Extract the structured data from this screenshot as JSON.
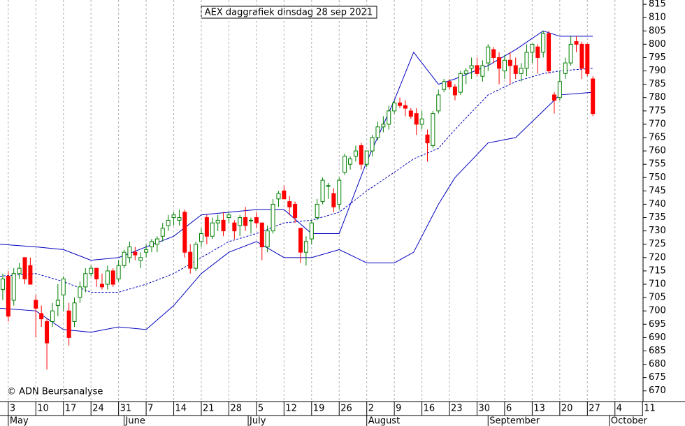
{
  "chart_data": {
    "type": "candlestick",
    "title": "AEX daggrafiek dinsdag 28 sep 2021",
    "source": "© ADN Beursanalyse",
    "xlim": [
      -1.5,
      115.1
    ],
    "ylim": [
      666,
      816.6
    ],
    "yticks": [
      670,
      675,
      680,
      685,
      690,
      695,
      700,
      705,
      710,
      715,
      720,
      725,
      730,
      735,
      740,
      745,
      750,
      755,
      760,
      765,
      770,
      775,
      780,
      785,
      790,
      795,
      800,
      805,
      810,
      815
    ],
    "xticks": [
      {
        "value": 0,
        "label": "3"
      },
      {
        "value": 5,
        "label": "10"
      },
      {
        "value": 10,
        "label": "17"
      },
      {
        "value": 15,
        "label": "24"
      },
      {
        "value": 20,
        "label": "31"
      },
      {
        "value": 25,
        "label": "7"
      },
      {
        "value": 30,
        "label": "14"
      },
      {
        "value": 35,
        "label": "21"
      },
      {
        "value": 40,
        "label": "28"
      },
      {
        "value": 45,
        "label": "5"
      },
      {
        "value": 50,
        "label": "12"
      },
      {
        "value": 55,
        "label": "19"
      },
      {
        "value": 60,
        "label": "26"
      },
      {
        "value": 65,
        "label": "2"
      },
      {
        "value": 70,
        "label": "9"
      },
      {
        "value": 75,
        "label": "16"
      },
      {
        "value": 80,
        "label": "23"
      },
      {
        "value": 85,
        "label": "30"
      },
      {
        "value": 90,
        "label": "6"
      },
      {
        "value": 95,
        "label": "13"
      },
      {
        "value": 100,
        "label": "20"
      },
      {
        "value": 105,
        "label": "27"
      },
      {
        "value": 110,
        "label": "4"
      },
      {
        "value": 115,
        "label": "11"
      }
    ],
    "month_ticks": [
      {
        "value": 0,
        "label": "May"
      },
      {
        "value": 21,
        "label": "June"
      },
      {
        "value": 43.5,
        "label": "July"
      },
      {
        "value": 65,
        "label": "August"
      },
      {
        "value": 87,
        "label": "September"
      },
      {
        "value": 109,
        "label": "October"
      }
    ],
    "grid": true,
    "up_color": "#008000",
    "down_color": "#ff0000",
    "x": [
      -1,
      0,
      1,
      2,
      3,
      4,
      5,
      6,
      7,
      8,
      9,
      10,
      11,
      12,
      13,
      14,
      15,
      16,
      17,
      18,
      19,
      20,
      21,
      22,
      23,
      24,
      25,
      26,
      27,
      28,
      29,
      30,
      31,
      32,
      33,
      34,
      35,
      36,
      37,
      38,
      39,
      40,
      41,
      42,
      43,
      44,
      45,
      46,
      47,
      48,
      49,
      50,
      51,
      52,
      53,
      54,
      55,
      56,
      57,
      58,
      59,
      60,
      61,
      62,
      63,
      64,
      65,
      66,
      67,
      68,
      69,
      70,
      71,
      72,
      73,
      74,
      75,
      76,
      77,
      78,
      79,
      80,
      81,
      82,
      83,
      84,
      85,
      86,
      87,
      88,
      89,
      90,
      91,
      92,
      93,
      94,
      95,
      96,
      97,
      98,
      99,
      100,
      101,
      102,
      103,
      104,
      105,
      106
    ],
    "ohlc": [
      [
        708,
        714,
        704,
        712
      ],
      [
        713,
        715,
        696,
        698
      ],
      [
        704,
        716,
        702,
        714
      ],
      [
        714,
        718,
        712,
        716
      ],
      [
        720,
        720,
        710,
        712
      ],
      [
        717,
        720,
        710,
        710
      ],
      [
        704,
        706,
        690,
        701
      ],
      [
        699,
        702,
        694,
        697
      ],
      [
        696,
        697,
        678,
        688
      ],
      [
        696,
        703,
        694,
        700
      ],
      [
        702,
        710,
        698,
        704
      ],
      [
        706,
        713,
        700,
        712
      ],
      [
        700,
        703,
        687,
        690
      ],
      [
        696,
        705,
        694,
        703
      ],
      [
        705,
        711,
        703,
        709
      ],
      [
        709,
        716,
        707,
        714
      ],
      [
        714,
        717,
        713,
        716
      ],
      [
        716,
        716,
        709,
        712
      ],
      [
        710,
        714,
        708,
        709
      ],
      [
        710,
        717,
        708,
        715
      ],
      [
        715,
        716,
        709,
        710
      ],
      [
        712,
        719,
        711,
        717
      ],
      [
        717,
        723,
        716,
        722
      ],
      [
        720,
        726,
        718,
        724
      ],
      [
        722,
        724,
        719,
        721
      ],
      [
        719,
        722,
        716,
        720
      ],
      [
        722,
        725,
        720,
        723
      ],
      [
        724,
        727,
        722,
        726
      ],
      [
        725,
        728,
        722,
        727
      ],
      [
        728,
        733,
        726,
        731
      ],
      [
        732,
        736,
        730,
        734
      ],
      [
        735,
        737,
        732,
        736
      ],
      [
        734,
        738,
        732,
        735
      ],
      [
        737,
        738,
        720,
        722
      ],
      [
        722,
        725,
        714,
        716
      ],
      [
        716,
        726,
        715,
        725
      ],
      [
        726,
        731,
        724,
        729
      ],
      [
        735,
        736,
        725,
        728
      ],
      [
        728,
        735,
        727,
        733
      ],
      [
        733,
        736,
        730,
        734
      ],
      [
        734,
        737,
        728,
        730
      ],
      [
        735,
        737,
        733,
        736
      ],
      [
        733,
        734,
        727,
        730
      ],
      [
        732,
        736,
        728,
        735
      ],
      [
        735,
        739,
        730,
        732
      ],
      [
        734,
        735,
        729,
        734
      ],
      [
        735,
        737,
        731,
        733
      ],
      [
        733,
        733,
        719,
        724
      ],
      [
        724,
        732,
        722,
        730
      ],
      [
        730,
        742,
        729,
        740
      ],
      [
        742,
        745,
        739,
        744
      ],
      [
        745,
        747,
        742,
        742
      ],
      [
        741,
        743,
        736,
        739
      ],
      [
        740,
        741,
        733,
        735
      ],
      [
        731,
        731,
        718,
        722
      ],
      [
        722,
        728,
        717,
        726
      ],
      [
        727,
        734,
        725,
        733
      ],
      [
        735,
        742,
        734,
        740
      ],
      [
        741,
        750,
        740,
        749
      ],
      [
        747,
        748,
        742,
        747
      ],
      [
        744,
        746,
        737,
        739
      ],
      [
        740,
        750,
        738,
        749
      ],
      [
        752,
        759,
        751,
        758
      ],
      [
        755,
        758,
        753,
        757
      ],
      [
        758,
        762,
        756,
        760
      ],
      [
        762,
        763,
        753,
        755
      ],
      [
        755,
        760,
        754,
        760
      ],
      [
        760,
        766,
        758,
        765
      ],
      [
        765,
        771,
        764,
        769
      ],
      [
        769,
        773,
        767,
        770
      ],
      [
        770,
        777,
        768,
        775
      ],
      [
        775,
        779,
        774,
        778
      ],
      [
        778,
        780,
        776,
        777
      ],
      [
        777,
        779,
        773,
        776
      ],
      [
        775,
        776,
        772,
        773
      ],
      [
        774,
        776,
        766,
        770
      ],
      [
        770,
        775,
        768,
        772
      ],
      [
        766,
        768,
        756,
        763
      ],
      [
        762,
        775,
        761,
        774
      ],
      [
        775,
        783,
        774,
        781
      ],
      [
        783,
        787,
        782,
        786
      ],
      [
        786,
        787,
        783,
        784
      ],
      [
        784,
        785,
        779,
        781
      ],
      [
        782,
        790,
        781,
        789
      ],
      [
        789,
        791,
        785,
        790
      ],
      [
        791,
        795,
        787,
        792
      ],
      [
        792,
        795,
        788,
        789
      ],
      [
        788,
        794,
        786,
        792
      ],
      [
        793,
        800,
        790,
        799
      ],
      [
        798,
        799,
        793,
        795
      ],
      [
        795,
        797,
        785,
        791
      ],
      [
        790,
        796,
        787,
        794
      ],
      [
        794,
        797,
        785,
        792
      ],
      [
        792,
        795,
        787,
        789
      ],
      [
        789,
        793,
        786,
        791
      ],
      [
        791,
        800,
        788,
        797
      ],
      [
        797,
        800,
        793,
        800
      ],
      [
        799,
        800,
        789,
        795
      ],
      [
        797,
        805,
        795,
        804
      ],
      [
        804,
        805,
        789,
        790
      ],
      [
        781,
        782,
        774,
        779
      ],
      [
        780,
        790,
        779,
        786
      ],
      [
        789,
        795,
        787,
        793
      ],
      [
        793,
        803,
        792,
        800
      ],
      [
        801,
        803,
        797,
        800
      ],
      [
        800,
        801,
        787,
        791
      ],
      [
        800,
        800,
        788,
        789
      ],
      [
        787,
        788,
        773,
        774
      ]
    ],
    "bands": {
      "color": "#0000c0",
      "x": [
        -1.5,
        5,
        10,
        15,
        20,
        25,
        30,
        35,
        40,
        45,
        50,
        55,
        60,
        65,
        70,
        73.5,
        78,
        81,
        87,
        92,
        97,
        100,
        106
      ],
      "upper": [
        725,
        724,
        723,
        719,
        720,
        724,
        728,
        736,
        737,
        738,
        738,
        729,
        729,
        756,
        779,
        797,
        785,
        787,
        792,
        798,
        805,
        803,
        803
      ],
      "middle": [
        713,
        714,
        711,
        707,
        707,
        710,
        714,
        720,
        726,
        729,
        733,
        734,
        737,
        745,
        752,
        757,
        761,
        768,
        781,
        786,
        789,
        790,
        791
      ],
      "lower": [
        701,
        700,
        693,
        692,
        694,
        693,
        702,
        714,
        722,
        726,
        720,
        720,
        723,
        718,
        718,
        722,
        740,
        750,
        763,
        765,
        775,
        781,
        782
      ]
    }
  }
}
